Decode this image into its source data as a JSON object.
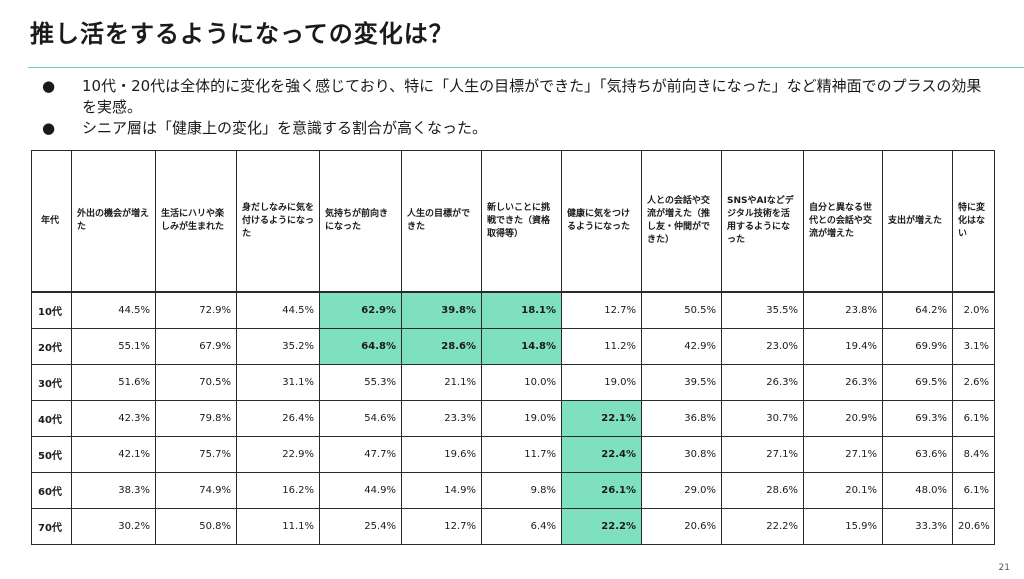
{
  "slide": {
    "title": "推し活をするようになっての変化は？",
    "bullets": [
      "10代・20代は全体的に変化を強く感じており、特に「人生の目標ができた」「気持ちが前向きになった」など精神面でのプラスの効果を実感。",
      "シニア層は「健康上の変化」を意識する割合が高くなった。"
    ],
    "bullet_glyph": "●",
    "page_number": "21"
  },
  "table": {
    "headers": [
      "年代",
      "外出の機会が増えた",
      "生活にハリや楽しみが生まれた",
      "身だしなみに気を付けるようになった",
      "気持ちが前向きになった",
      "人生の目標ができた",
      "新しいことに挑戦できた（資格取得等）",
      "健康に気をつけるようになった",
      "人との会話や交流が増えた（推し友・仲間ができた）",
      "SNSやAIなどデジタル技術を活用するようになった",
      "自分と異なる世代との会話や交流が増えた",
      "支出が増えた",
      "特に変化はない"
    ],
    "rows": [
      {
        "age": "10代",
        "values": [
          "44.5%",
          "72.9%",
          "44.5%",
          "62.9%",
          "39.8%",
          "18.1%",
          "12.7%",
          "50.5%",
          "35.5%",
          "23.8%",
          "64.2%",
          "2.0%"
        ],
        "highlight": [
          3,
          4,
          5
        ]
      },
      {
        "age": "20代",
        "values": [
          "55.1%",
          "67.9%",
          "35.2%",
          "64.8%",
          "28.6%",
          "14.8%",
          "11.2%",
          "42.9%",
          "23.0%",
          "19.4%",
          "69.9%",
          "3.1%"
        ],
        "highlight": [
          3,
          4,
          5
        ]
      },
      {
        "age": "30代",
        "values": [
          "51.6%",
          "70.5%",
          "31.1%",
          "55.3%",
          "21.1%",
          "10.0%",
          "19.0%",
          "39.5%",
          "26.3%",
          "26.3%",
          "69.5%",
          "2.6%"
        ],
        "highlight": []
      },
      {
        "age": "40代",
        "values": [
          "42.3%",
          "79.8%",
          "26.4%",
          "54.6%",
          "23.3%",
          "19.0%",
          "22.1%",
          "36.8%",
          "30.7%",
          "20.9%",
          "69.3%",
          "6.1%"
        ],
        "highlight": [
          6
        ]
      },
      {
        "age": "50代",
        "values": [
          "42.1%",
          "75.7%",
          "22.9%",
          "47.7%",
          "19.6%",
          "11.7%",
          "22.4%",
          "30.8%",
          "27.1%",
          "27.1%",
          "63.6%",
          "8.4%"
        ],
        "highlight": [
          6
        ]
      },
      {
        "age": "60代",
        "values": [
          "38.3%",
          "74.9%",
          "16.2%",
          "44.9%",
          "14.9%",
          "9.8%",
          "26.1%",
          "29.0%",
          "28.6%",
          "20.1%",
          "48.0%",
          "6.1%"
        ],
        "highlight": [
          6
        ]
      },
      {
        "age": "70代",
        "values": [
          "30.2%",
          "50.8%",
          "11.1%",
          "25.4%",
          "12.7%",
          "6.4%",
          "22.2%",
          "20.6%",
          "22.2%",
          "15.9%",
          "33.3%",
          "20.6%"
        ],
        "highlight": [
          6
        ]
      }
    ],
    "highlight_color": "#7fe0c0"
  }
}
